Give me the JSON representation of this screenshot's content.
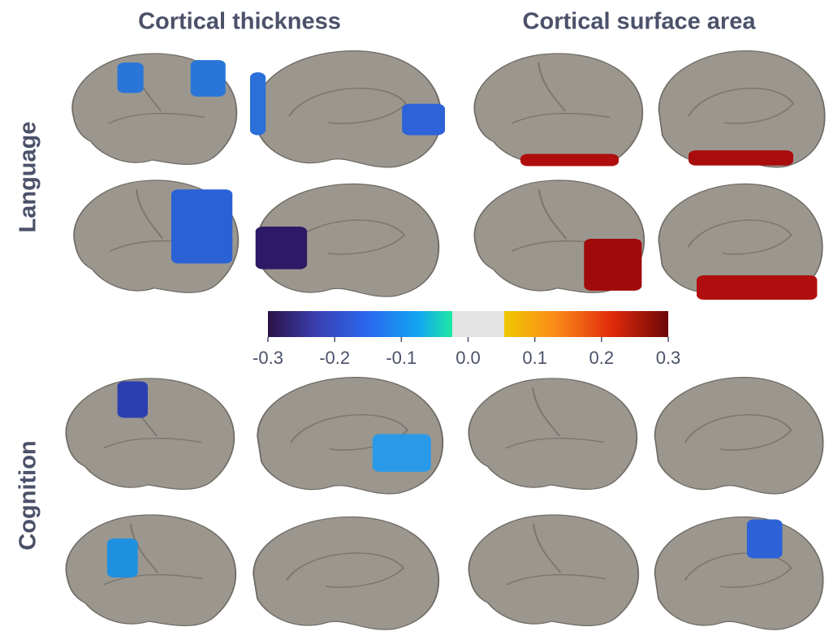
{
  "header": {
    "columns": [
      "Cortical thickness",
      "Cortical surface area"
    ],
    "rows": [
      "Language",
      "Cognition"
    ]
  },
  "colorbar": {
    "lim": [
      -0.3,
      0.3
    ],
    "ticks": [
      -0.3,
      -0.2,
      -0.1,
      {
        "value": 0,
        "label": "0.0"
      },
      0.1,
      0.2,
      0.3
    ]
  }
}
